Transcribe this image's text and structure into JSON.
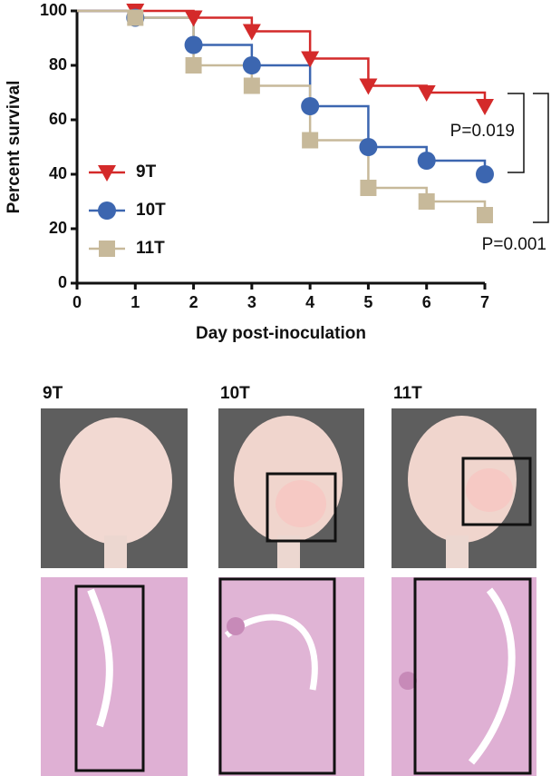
{
  "chart_data": {
    "type": "step",
    "ylabel": "Percent survival",
    "xlabel": "Day post-inoculation",
    "x": [
      0,
      1,
      2,
      3,
      4,
      5,
      6,
      7
    ],
    "series": [
      {
        "name": "9T",
        "color": "#d42a2a",
        "marker": "triangle-down",
        "values": [
          100,
          100,
          97.5,
          92.5,
          82.5,
          72.5,
          70,
          65
        ]
      },
      {
        "name": "10T",
        "color": "#3c66b0",
        "marker": "circle",
        "values": [
          100,
          97.5,
          87.5,
          80,
          65,
          50,
          45,
          40
        ]
      },
      {
        "name": "11T",
        "color": "#c7b99a",
        "marker": "square",
        "values": [
          100,
          97.5,
          80,
          72.5,
          52.5,
          35,
          30,
          25
        ]
      }
    ],
    "xlim": [
      0,
      7
    ],
    "xticks": [
      0,
      1,
      2,
      3,
      4,
      5,
      6,
      7
    ],
    "ylim": [
      0,
      100
    ],
    "yticks": [
      0,
      20,
      40,
      60,
      80,
      100
    ],
    "annotations": [
      "P=0.019",
      "P=0.001"
    ]
  },
  "panels": [
    {
      "label": "9T"
    },
    {
      "label": "10T"
    },
    {
      "label": "11T"
    }
  ]
}
